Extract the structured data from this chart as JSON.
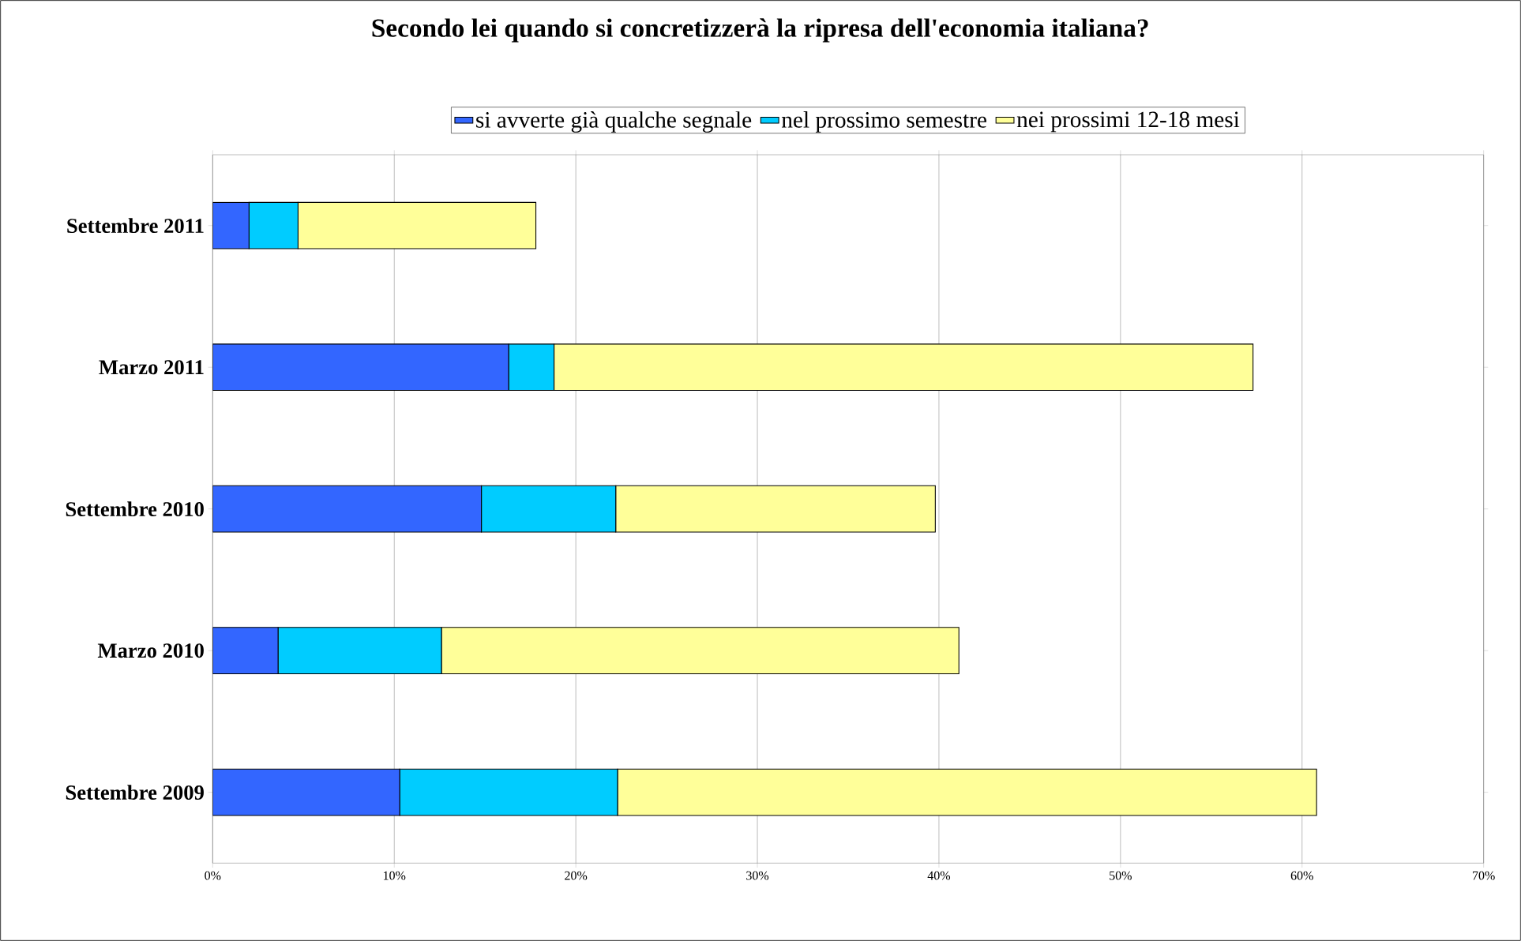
{
  "chart_data": {
    "type": "bar",
    "orientation": "horizontal",
    "stacked": true,
    "title": "Secondo lei quando si concretizzerà la ripresa dell'economia italiana?",
    "categories": [
      "Settembre 2011",
      "Marzo 2011",
      "Settembre 2010",
      "Marzo 2010",
      "Settembre 2009"
    ],
    "series": [
      {
        "name": "si avverte già qualche segnale",
        "color": "#3366ff",
        "values": [
          2.0,
          16.3,
          14.8,
          3.6,
          10.3
        ]
      },
      {
        "name": "nel prossimo semestre",
        "color": "#00ccff",
        "values": [
          2.7,
          2.5,
          7.4,
          9.0,
          12.0
        ]
      },
      {
        "name": "nei  prossimi 12-18 mesi",
        "color": "#ffff99",
        "values": [
          13.1,
          38.5,
          17.6,
          28.5,
          38.5
        ]
      }
    ],
    "xlim": [
      0,
      70
    ],
    "xticks": [
      {
        "value": 0,
        "label": "0%"
      },
      {
        "value": 10,
        "label": "10%"
      },
      {
        "value": 20,
        "label": "20%"
      },
      {
        "value": 30,
        "label": "30%"
      },
      {
        "value": 40,
        "label": "40%"
      },
      {
        "value": 50,
        "label": "50%"
      },
      {
        "value": 60,
        "label": "60%"
      },
      {
        "value": 70,
        "label": "70%"
      }
    ],
    "grid": "x",
    "legend": "top"
  }
}
